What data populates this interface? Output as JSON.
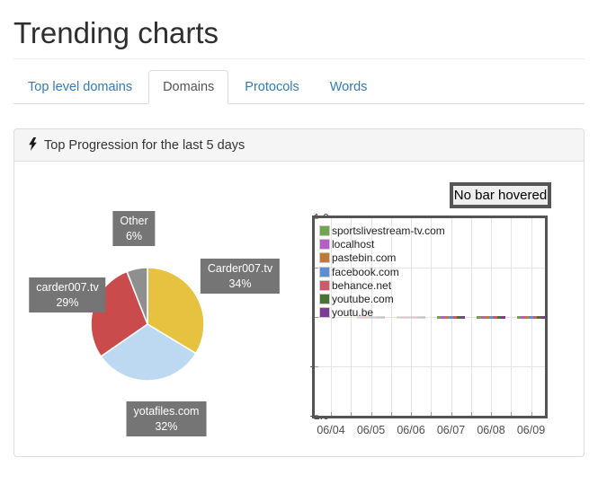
{
  "page": {
    "title": "Trending charts"
  },
  "tabs": [
    {
      "label": "Top level domains",
      "active": false
    },
    {
      "label": "Domains",
      "active": true
    },
    {
      "label": "Protocols",
      "active": false
    },
    {
      "label": "Words",
      "active": false
    }
  ],
  "panel": {
    "title": "Top Progression for the last 5 days",
    "icon": "lightning-bolt-icon"
  },
  "hover_box": {
    "label": "No bar hovered"
  },
  "colors": {
    "tab_link": "#337ab7",
    "label_box_bg": "#757575",
    "plot_border": "#545454"
  },
  "chart_data": [
    {
      "type": "pie",
      "title": "",
      "start": "top",
      "direction": "clockwise",
      "slices": [
        {
          "label": "Carder007.tv",
          "pct_label": "34%",
          "value": 34,
          "color": "#e7c240"
        },
        {
          "label": "yotafiles.com",
          "pct_label": "32%",
          "value": 32,
          "color": "#bdd9f1"
        },
        {
          "label": "carder007.tv",
          "pct_label": "29%",
          "value": 29,
          "color": "#c94b4b"
        },
        {
          "label": "Other",
          "pct_label": "6%",
          "value": 6,
          "color": "#8f8f8f"
        }
      ]
    },
    {
      "type": "bar",
      "title": "",
      "x": [
        "06/04",
        "06/05",
        "06/06",
        "06/07",
        "06/08",
        "06/09"
      ],
      "ylim": [
        -1.0,
        1.0
      ],
      "yticks": [
        1.0,
        0.5,
        0.0,
        -0.5,
        -1.0
      ],
      "grid": true,
      "legend_position": "top-left",
      "series": [
        {
          "name": "sportslivestream-tv.com",
          "color": "#71a350",
          "values": [
            0,
            0.002,
            0.002,
            0.01,
            0.01,
            0.01
          ]
        },
        {
          "name": "localhost",
          "color": "#b65cc6",
          "values": [
            0,
            0.002,
            0.002,
            0.01,
            0.01,
            0.01
          ]
        },
        {
          "name": "pastebin.com",
          "color": "#c07b32",
          "values": [
            0,
            0.002,
            0.002,
            0.01,
            0.01,
            0.01
          ]
        },
        {
          "name": "facebook.com",
          "color": "#5d8fd0",
          "values": [
            0,
            0.002,
            0.002,
            0.01,
            0.01,
            0.01
          ]
        },
        {
          "name": "behance.net",
          "color": "#cc5a68",
          "values": [
            0,
            0.002,
            0.002,
            0.01,
            0.01,
            0.01
          ]
        },
        {
          "name": "youtube.com",
          "color": "#4a7233",
          "values": [
            0,
            0.002,
            0.002,
            0.01,
            0.01,
            0.01
          ]
        },
        {
          "name": "youtu.be",
          "color": "#7b3b97",
          "values": [
            0,
            0.002,
            0.002,
            0.01,
            0.01,
            0.01
          ]
        }
      ]
    }
  ]
}
